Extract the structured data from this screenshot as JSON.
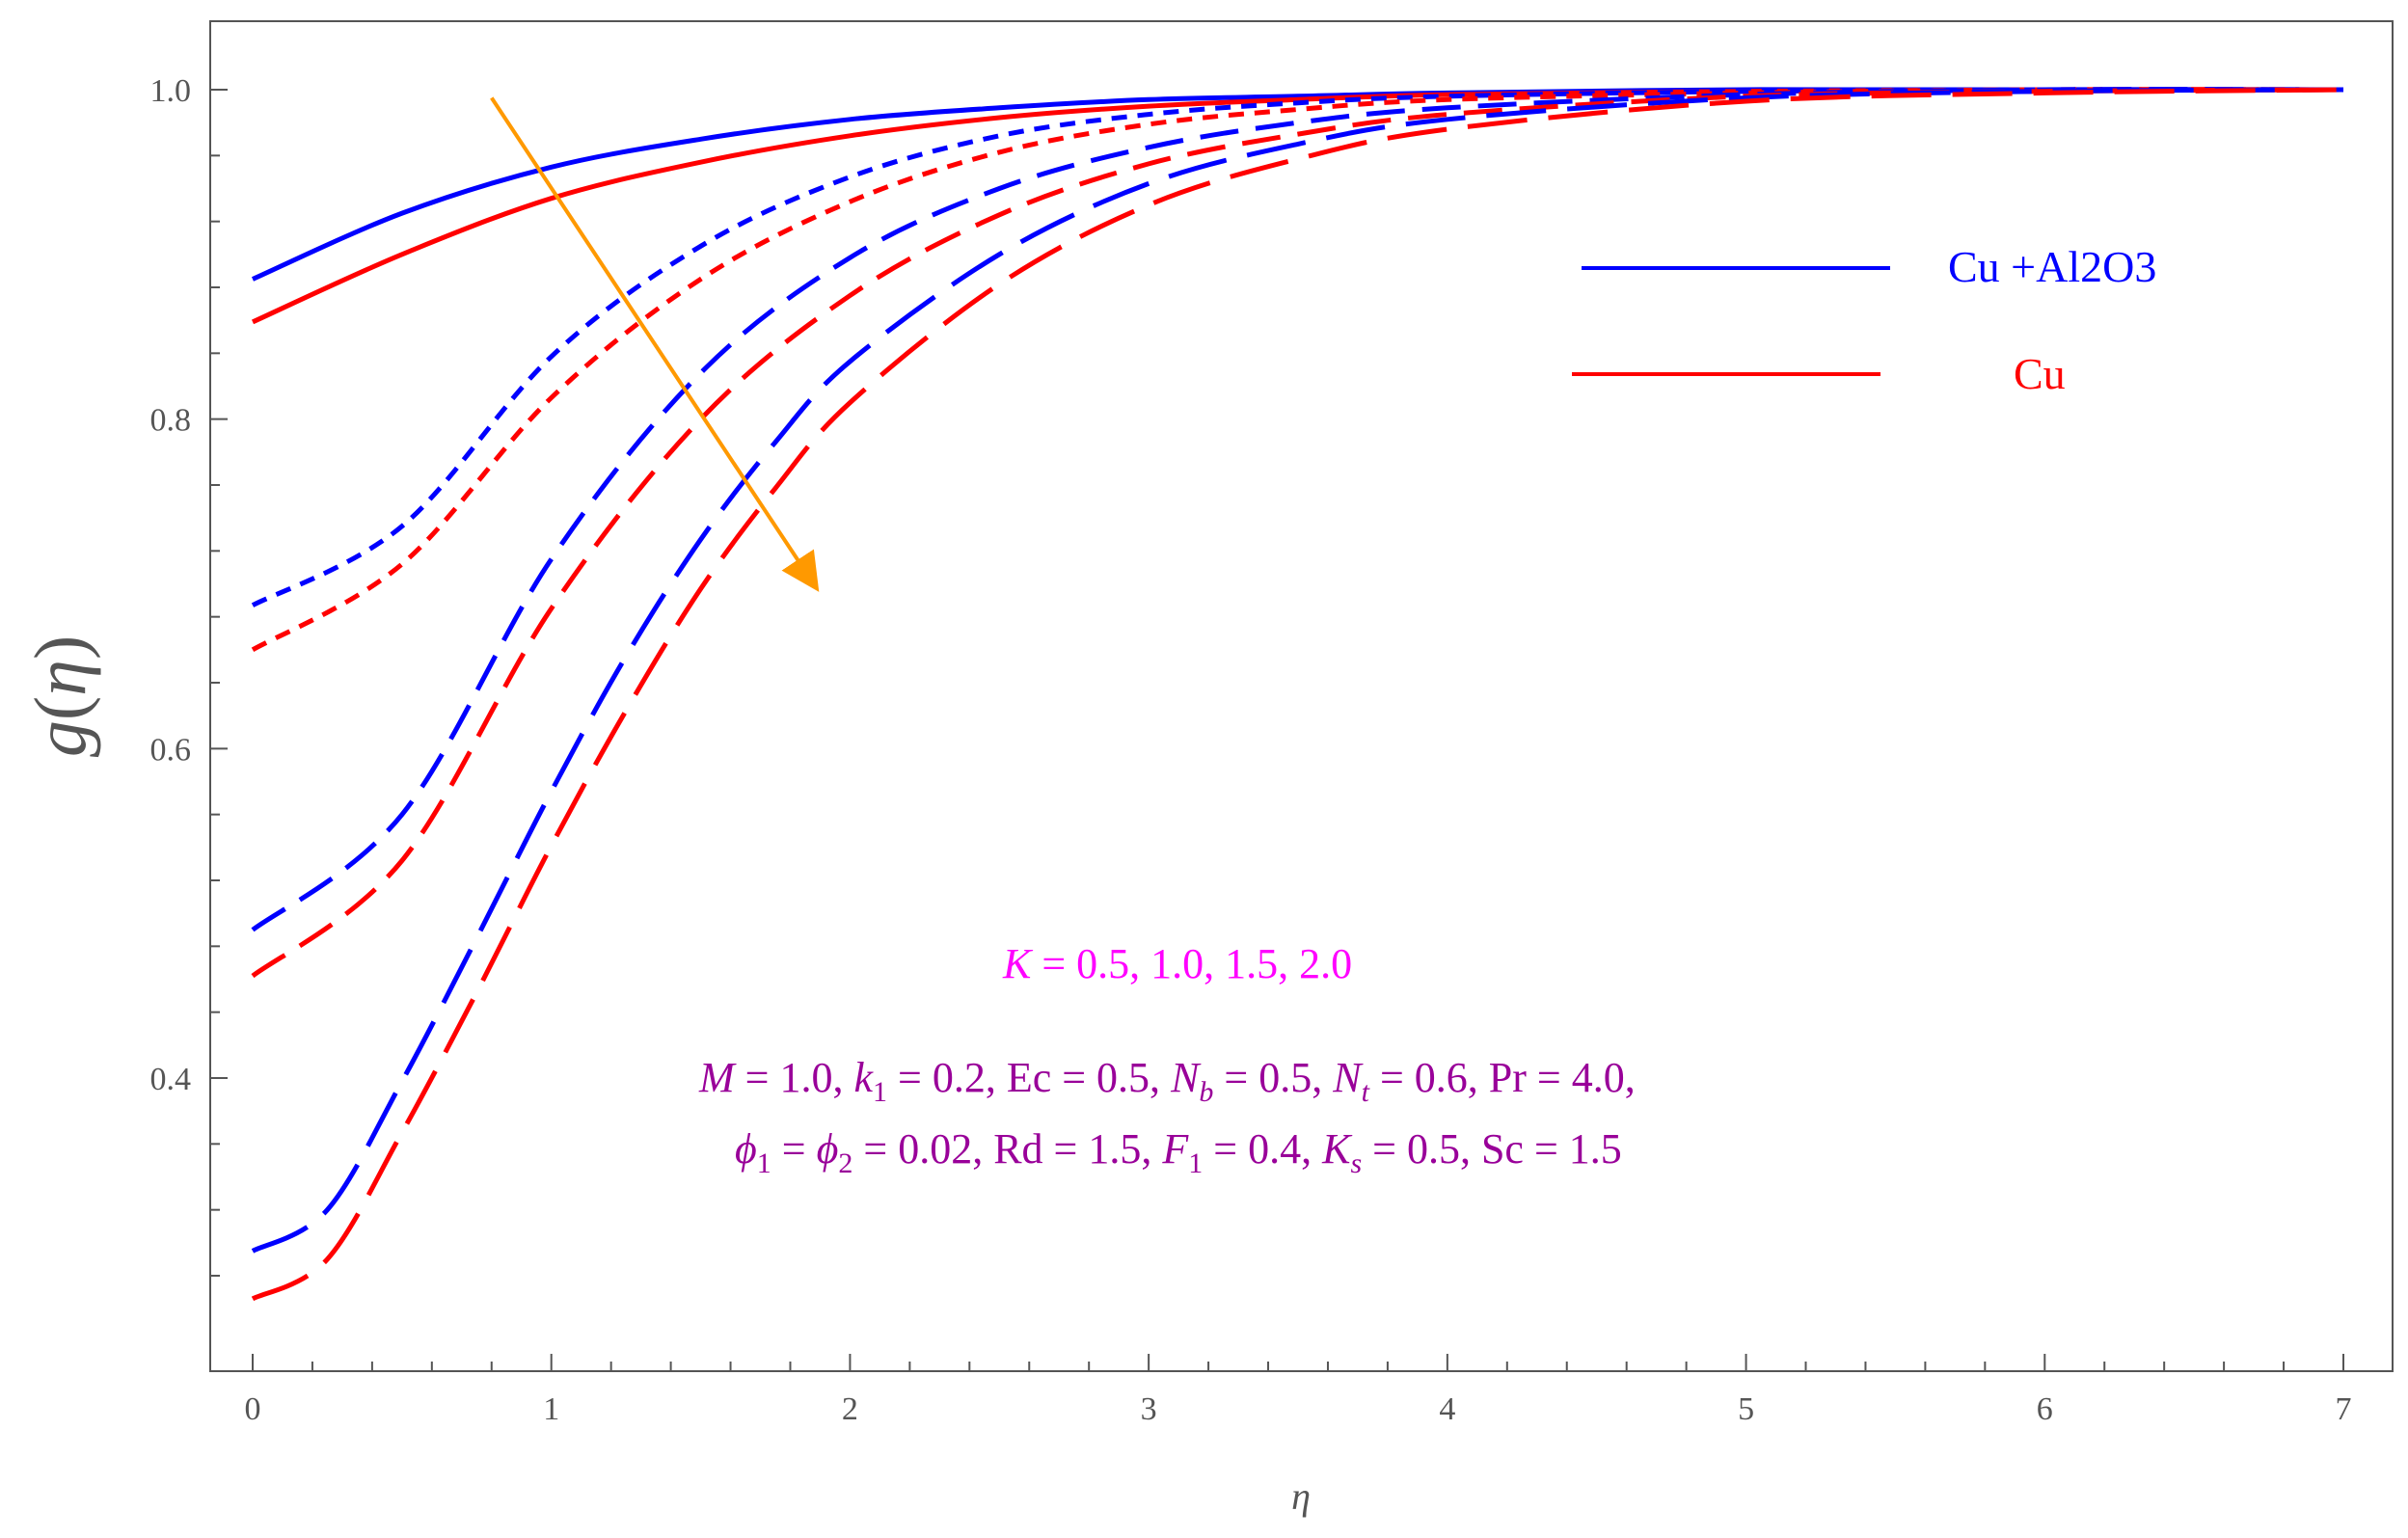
{
  "chart_data": {
    "type": "line",
    "xlabel": "η",
    "ylabel_func": "g",
    "ylabel_arg": "η",
    "xlim": [
      0,
      7
    ],
    "ylim": [
      0.265,
      1.02
    ],
    "x_ticks": [
      0,
      1,
      2,
      3,
      4,
      5,
      6,
      7
    ],
    "y_ticks": [
      0.4,
      0.6,
      0.8,
      1.0
    ],
    "y_tick_labels": [
      "0.4",
      "0.6",
      "0.8",
      "1.0"
    ],
    "grid": false,
    "legend_position": "top-right",
    "legend": [
      {
        "label": "Cu +Al2O3",
        "color": "#0000ff"
      },
      {
        "label": "Cu",
        "color": "#ff0000"
      }
    ],
    "series": [
      {
        "fluid": "Cu +Al2O3",
        "K": 0.5,
        "color": "#0000ff",
        "dash": "solid",
        "x": [
          0,
          0.5,
          1.0,
          1.5,
          2.0,
          2.5,
          3.0,
          3.5,
          4.0,
          5.0,
          6.0,
          7.0
        ],
        "y": [
          0.885,
          0.925,
          0.953,
          0.97,
          0.982,
          0.989,
          0.994,
          0.996,
          0.998,
          1.0,
          1.0,
          1.0
        ]
      },
      {
        "fluid": "Cu",
        "K": 0.5,
        "color": "#ff0000",
        "dash": "solid",
        "x": [
          0,
          0.5,
          1.0,
          1.5,
          2.0,
          2.5,
          3.0,
          3.5,
          4.0,
          5.0,
          6.0,
          7.0
        ],
        "y": [
          0.859,
          0.9,
          0.934,
          0.956,
          0.972,
          0.983,
          0.99,
          0.994,
          0.997,
          0.999,
          1.0,
          1.0
        ]
      },
      {
        "fluid": "Cu +Al2O3",
        "K": 1.0,
        "color": "#0000ff",
        "dash": "short",
        "x": [
          0,
          0.5,
          1.0,
          1.5,
          2.0,
          2.5,
          3.0,
          3.5,
          4.0,
          5.0,
          6.0,
          7.0
        ],
        "y": [
          0.687,
          0.735,
          0.838,
          0.905,
          0.947,
          0.972,
          0.985,
          0.992,
          0.996,
          0.999,
          1.0,
          1.0
        ]
      },
      {
        "fluid": "Cu",
        "K": 1.0,
        "color": "#ff0000",
        "dash": "short",
        "x": [
          0,
          0.5,
          1.0,
          1.5,
          2.0,
          2.5,
          3.0,
          3.5,
          4.0,
          5.0,
          6.0,
          7.0
        ],
        "y": [
          0.66,
          0.712,
          0.813,
          0.885,
          0.932,
          0.962,
          0.979,
          0.988,
          0.994,
          0.998,
          1.0,
          1.0
        ]
      },
      {
        "fluid": "Cu +Al2O3",
        "K": 1.5,
        "color": "#0000ff",
        "dash": "medium",
        "x": [
          0,
          0.5,
          1.0,
          1.5,
          2.0,
          2.5,
          3.0,
          3.5,
          4.0,
          5.0,
          6.0,
          7.0
        ],
        "y": [
          0.49,
          0.56,
          0.715,
          0.828,
          0.898,
          0.94,
          0.965,
          0.98,
          0.989,
          0.997,
          1.0,
          1.0
        ]
      },
      {
        "fluid": "Cu",
        "K": 1.5,
        "color": "#ff0000",
        "dash": "medium",
        "x": [
          0,
          0.5,
          1.0,
          1.5,
          2.0,
          2.5,
          3.0,
          3.5,
          4.0,
          5.0,
          6.0,
          7.0
        ],
        "y": [
          0.462,
          0.532,
          0.685,
          0.8,
          0.875,
          0.924,
          0.955,
          0.973,
          0.985,
          0.996,
          0.999,
          1.0
        ]
      },
      {
        "fluid": "Cu +Al2O3",
        "K": 2.0,
        "color": "#0000ff",
        "dash": "long",
        "x": [
          0,
          0.25,
          0.5,
          0.75,
          1.0,
          1.25,
          1.5,
          1.75,
          2.0,
          2.5,
          3.0,
          3.5,
          4.0,
          5.0,
          6.0,
          7.0
        ],
        "y": [
          0.295,
          0.32,
          0.398,
          0.485,
          0.574,
          0.656,
          0.727,
          0.786,
          0.835,
          0.9,
          0.943,
          0.967,
          0.982,
          0.995,
          0.999,
          1.0
        ]
      },
      {
        "fluid": "Cu",
        "K": 2.0,
        "color": "#ff0000",
        "dash": "long",
        "x": [
          0,
          0.25,
          0.5,
          0.75,
          1.0,
          1.25,
          1.5,
          1.75,
          2.0,
          2.5,
          3.0,
          3.5,
          4.0,
          5.0,
          6.0,
          7.0
        ],
        "y": [
          0.266,
          0.29,
          0.367,
          0.452,
          0.541,
          0.623,
          0.697,
          0.758,
          0.81,
          0.882,
          0.93,
          0.958,
          0.976,
          0.993,
          0.998,
          1.0
        ]
      }
    ],
    "arrow": {
      "from": [
        0.8,
        0.995
      ],
      "to": [
        1.9,
        0.69
      ],
      "color": "#ff9900"
    },
    "annotation_K": "K = 0.5, 1.0, 1.5, 2.0",
    "annotation_params_line1": "M = 1.0, k1 = 0.2, Ec = 0.5, Nb = 0.5, Nt = 0.6, Pr = 4.0,",
    "annotation_params_line2": "ϕ1 = ϕ2 = 0.02, Rd = 1.5, F1 = 0.4, Ks = 0.5, Sc = 1.5",
    "colors": {
      "blue": "#0000ff",
      "red": "#ff0000",
      "arrow": "#ff9900",
      "K_text": "#ff00ff",
      "params_text": "#990099",
      "axis": "#555555"
    }
  }
}
